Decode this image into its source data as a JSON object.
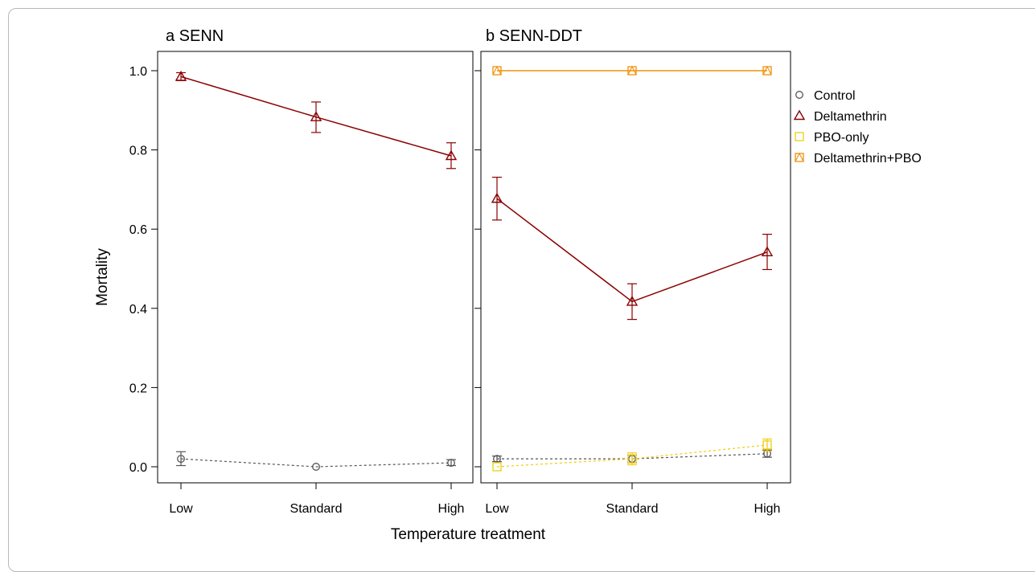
{
  "chart_data": [
    {
      "type": "line",
      "title": "a SENN",
      "categories": [
        "Low",
        "Standard",
        "High"
      ],
      "xlabel": "Temperature treatment",
      "ylabel": "Mortality",
      "ylim": [
        0,
        1.0
      ],
      "yticks": [
        "0.0",
        "0.2",
        "0.4",
        "0.6",
        "0.8",
        "1.0"
      ],
      "grid": false,
      "series": [
        {
          "name": "Control",
          "color": "#555555",
          "marker": "circle",
          "linestyle": "dotted",
          "values": [
            0.02,
            0.0,
            0.01
          ],
          "error_low": [
            0.003,
            0.0,
            0.003
          ],
          "error_high": [
            0.038,
            0.0,
            0.018
          ]
        },
        {
          "name": "Deltamethrin",
          "color": "#8b0000",
          "marker": "triangle",
          "linestyle": "solid",
          "values": [
            0.985,
            0.883,
            0.785
          ],
          "error_low": [
            0.975,
            0.844,
            0.753
          ],
          "error_high": [
            0.995,
            0.921,
            0.818
          ]
        }
      ]
    },
    {
      "type": "line",
      "title": "b SENN-DDT",
      "categories": [
        "Low",
        "Standard",
        "High"
      ],
      "xlabel": "Temperature treatment",
      "ylabel": "Mortality",
      "ylim": [
        0,
        1.0
      ],
      "grid": false,
      "series": [
        {
          "name": "Control",
          "color": "#555555",
          "marker": "circle",
          "linestyle": "dotted",
          "values": [
            0.02,
            0.02,
            0.033
          ],
          "error_low": [
            0.013,
            0.01,
            0.024
          ],
          "error_high": [
            0.027,
            0.03,
            0.042
          ]
        },
        {
          "name": "Deltamethrin",
          "color": "#8b0000",
          "marker": "triangle",
          "linestyle": "solid",
          "values": [
            0.677,
            0.417,
            0.542
          ],
          "error_low": [
            0.623,
            0.372,
            0.498
          ],
          "error_high": [
            0.731,
            0.462,
            0.587
          ]
        },
        {
          "name": "PBO-only",
          "color": "#f2cc0c",
          "marker": "square",
          "linestyle": "dotted",
          "values": [
            0.0,
            0.02,
            0.055
          ],
          "error_low": [
            0.0,
            0.005,
            0.04
          ],
          "error_high": [
            0.0,
            0.035,
            0.07
          ]
        },
        {
          "name": "Deltamethrin+PBO",
          "color": "#f0900a",
          "marker": "squaretri",
          "linestyle": "solid",
          "values": [
            1.0,
            1.0,
            1.0
          ],
          "error_low": [
            1.0,
            1.0,
            1.0
          ],
          "error_high": [
            1.0,
            1.0,
            1.0
          ]
        }
      ]
    }
  ],
  "legend": {
    "placement": "right",
    "items": [
      {
        "label": "Control",
        "color": "#555555",
        "marker": "circle"
      },
      {
        "label": "Deltamethrin",
        "color": "#8b0000",
        "marker": "triangle"
      },
      {
        "label": "PBO-only",
        "color": "#f2cc0c",
        "marker": "square"
      },
      {
        "label": "Deltamethrin+PBO",
        "color": "#f0900a",
        "marker": "squaretri"
      }
    ]
  }
}
